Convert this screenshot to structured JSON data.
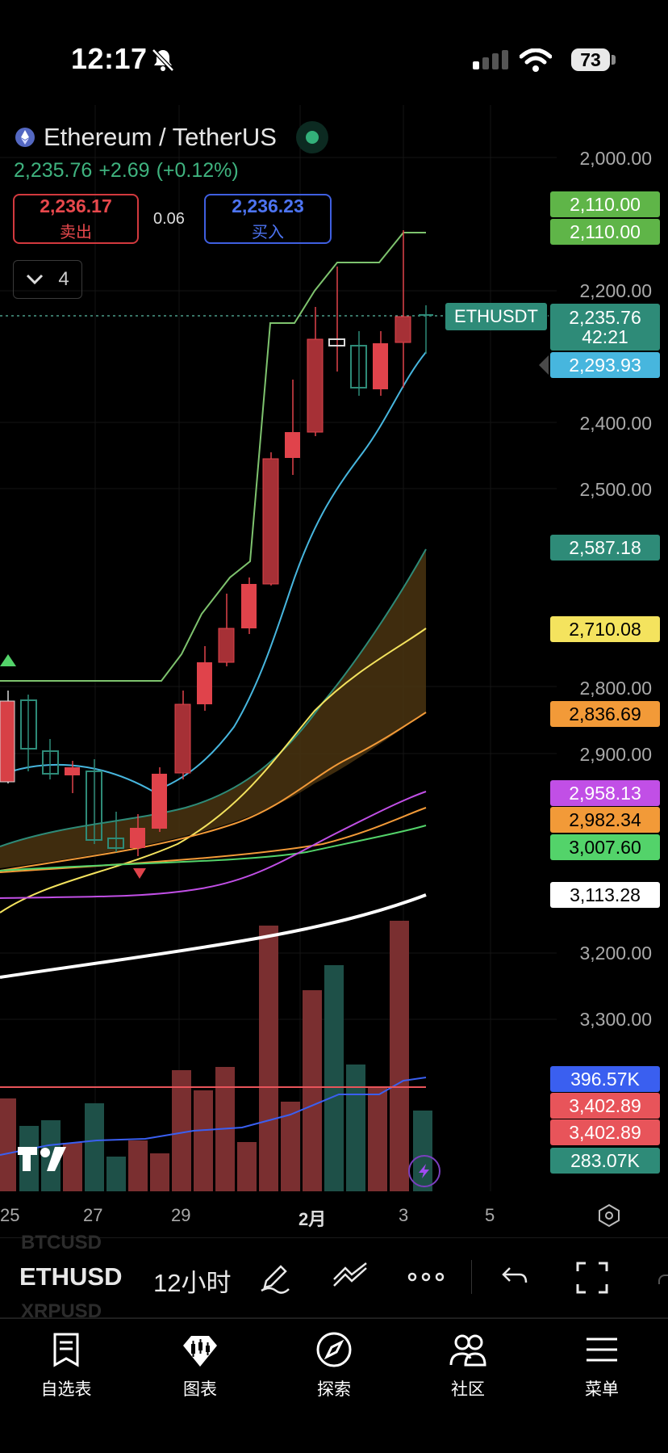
{
  "status_bar": {
    "time": "12:17",
    "battery": "73"
  },
  "header": {
    "title": "Ethereum / TetherUS",
    "last_price": "2,235.76",
    "change": "+2.69",
    "change_pct": "(+0.12%)",
    "sell_price": "2,236.17",
    "sell_label": "卖出",
    "spread": "0.06",
    "buy_price": "2,236.23",
    "buy_label": "买入",
    "indicator_count": "4"
  },
  "axis": {
    "ticks": [
      "2,000.00",
      "2,200.00",
      "2,400.00",
      "2,500.00",
      "2,800.00",
      "2,900.00",
      "3,200.00",
      "3,300.00"
    ],
    "tags": {
      "t1": "2,110.00",
      "t2": "2,110.00",
      "t3": "2,293.93",
      "t4": "2,587.18",
      "t5": "2,710.08",
      "t6": "2,836.69",
      "t7": "2,958.13",
      "t8": "2,982.34",
      "t9": "3,007.60",
      "t10": "3,113.28",
      "v1": "396.57K",
      "v2": "3,402.89",
      "v3": "3,402.89",
      "v4": "283.07K"
    },
    "current_price": "2,235.76",
    "countdown": "42:21",
    "symbol_label": "ETHUSDT"
  },
  "x_axis": [
    "25",
    "27",
    "29",
    "2月",
    "3",
    "5"
  ],
  "colors": {
    "up": "#2e8b78",
    "down": "#e0434b",
    "green_tag": "#5fb548",
    "teal_tag": "#2e8b78",
    "blue_tag": "#47b6de",
    "yellow_tag": "#f4e35e",
    "orange_tag": "#f29a38",
    "purple_tag": "#c14fe6",
    "lime_tag": "#53d36a",
    "vol_blue": "#3a5ff0",
    "vol_red": "#e8545a"
  },
  "toolbar": {
    "symbol": "ETHUSD",
    "interval": "12小时",
    "ghost_top": "BTCUSD",
    "ghost_bottom": "XRPUSD"
  },
  "nav": {
    "watchlist": "自选表",
    "chart": "图表",
    "explore": "探索",
    "community": "社区",
    "menu": "菜单"
  }
}
